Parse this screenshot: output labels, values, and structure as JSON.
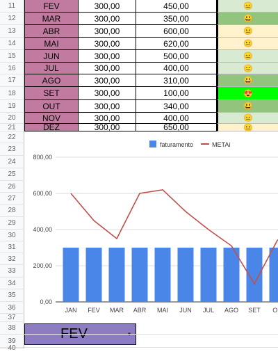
{
  "rows": [
    {
      "num": "11",
      "month": "FEV",
      "fat": "300,00",
      "meta": "450,00",
      "emoji": "😑",
      "color": "#d9ead3"
    },
    {
      "num": "12",
      "month": "MAR",
      "fat": "300,00",
      "meta": "350,00",
      "emoji": "😃",
      "color": "#93c47d"
    },
    {
      "num": "13",
      "month": "ABR",
      "fat": "300,00",
      "meta": "600,00",
      "emoji": "😐",
      "color": "#fff2cc"
    },
    {
      "num": "14",
      "month": "MAI",
      "fat": "300,00",
      "meta": "620,00",
      "emoji": "😐",
      "color": "#fff2cc"
    },
    {
      "num": "15",
      "month": "JUN",
      "fat": "300,00",
      "meta": "500,00",
      "emoji": "😑",
      "color": "#d9ead3"
    },
    {
      "num": "16",
      "month": "JUL",
      "fat": "300,00",
      "meta": "400,00",
      "emoji": "😑",
      "color": "#d9ead3"
    },
    {
      "num": "17",
      "month": "AGO",
      "fat": "300,00",
      "meta": "310,00",
      "emoji": "😃",
      "color": "#93c47d"
    },
    {
      "num": "18",
      "month": "SET",
      "fat": "300,00",
      "meta": "100,00",
      "emoji": "😍",
      "color": "#00ff00"
    },
    {
      "num": "19",
      "month": "OUT",
      "fat": "300,00",
      "meta": "340,00",
      "emoji": "😃",
      "color": "#93c47d"
    },
    {
      "num": "20",
      "month": "NOV",
      "fat": "300,00",
      "meta": "400,00",
      "emoji": "😑",
      "color": "#d9ead3"
    },
    {
      "num": "21",
      "month": "DEZ",
      "fat": "300,00",
      "meta": "650,00",
      "emoji": "😐",
      "color": "#fff2cc"
    }
  ],
  "row_numbers_below": [
    "22",
    "23",
    "24",
    "25",
    "26",
    "27",
    "28",
    "29",
    "30",
    "31",
    "32",
    "33",
    "34",
    "35",
    "36",
    "37",
    "38",
    "39",
    "40"
  ],
  "chart_data": {
    "type": "bar",
    "categories": [
      "JAN",
      "FEV",
      "MAR",
      "ABR",
      "MAI",
      "JUN",
      "JUL",
      "AGO",
      "SET",
      "OU"
    ],
    "series": [
      {
        "name": "faturamento",
        "type": "bar",
        "color": "#4a86e8",
        "values": [
          300,
          300,
          300,
          300,
          300,
          300,
          300,
          300,
          300,
          300
        ]
      },
      {
        "name": "METAi",
        "type": "line",
        "color": "#c0504d",
        "values": [
          600,
          450,
          350,
          600,
          620,
          500,
          400,
          310,
          100,
          340
        ]
      }
    ],
    "yticks": [
      "0,00",
      "200,00",
      "400,00",
      "600,00",
      "800,00"
    ],
    "ylim": [
      0,
      800
    ],
    "legend": "top",
    "grid": true
  },
  "selector": {
    "value": "FEV",
    "caret": "▾"
  }
}
